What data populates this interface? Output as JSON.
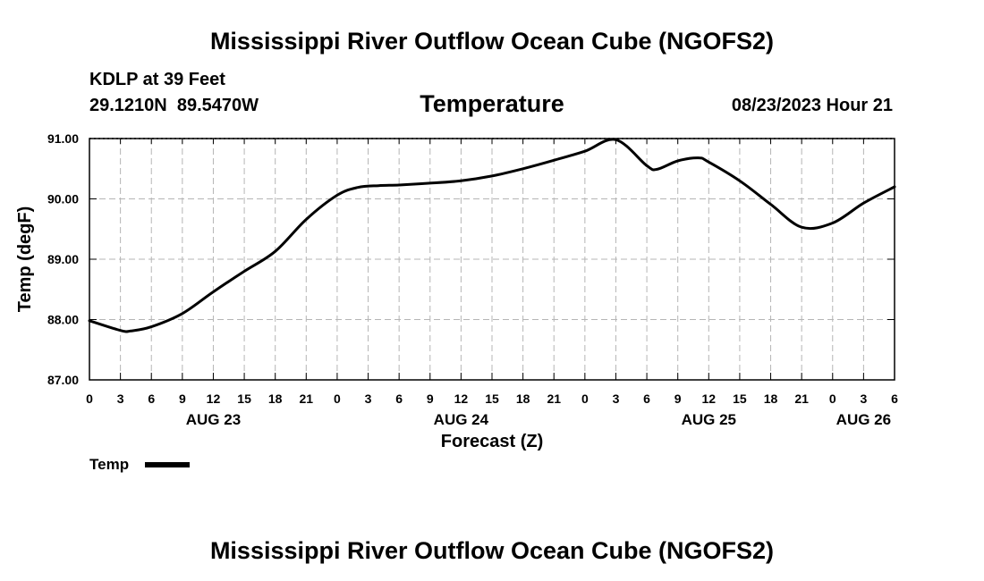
{
  "header": {
    "title": "Mississippi River Outflow Ocean Cube (NGOFS2)",
    "station": "KDLP at 39 Feet",
    "coords": "29.1210N  89.5470W",
    "datetime": "08/23/2023 Hour 21"
  },
  "footer": {
    "title": "Mississippi River Outflow Ocean Cube (NGOFS2)"
  },
  "chart_data": {
    "type": "line",
    "title": "Temperature",
    "xlabel": "Forecast (Z)",
    "ylabel": "Temp (degF)",
    "ylim": [
      87,
      91
    ],
    "xlim": [
      0,
      78
    ],
    "grid": true,
    "yticks": [
      87,
      88,
      89,
      90,
      91
    ],
    "ytick_labels": [
      "87.00",
      "88.00",
      "89.00",
      "90.00",
      "91.00"
    ],
    "xticks": [
      0,
      3,
      6,
      9,
      12,
      15,
      18,
      21,
      24,
      27,
      30,
      33,
      36,
      39,
      42,
      45,
      48,
      51,
      54,
      57,
      60,
      63,
      66,
      69,
      72,
      75,
      78
    ],
    "xtick_labels": [
      "0",
      "3",
      "6",
      "9",
      "12",
      "15",
      "18",
      "21",
      "0",
      "3",
      "6",
      "9",
      "12",
      "15",
      "18",
      "21",
      "0",
      "3",
      "6",
      "9",
      "12",
      "15",
      "18",
      "21",
      "0",
      "3",
      "6"
    ],
    "date_labels": [
      {
        "x": 12,
        "label": "AUG 23"
      },
      {
        "x": 36,
        "label": "AUG 24"
      },
      {
        "x": 60,
        "label": "AUG 25"
      },
      {
        "x": 75,
        "label": "AUG 26"
      }
    ],
    "legend": "Temp",
    "series": [
      {
        "name": "Temp",
        "color": "#000000",
        "x": [
          0,
          3,
          4,
          6,
          9,
          12,
          15,
          18,
          21,
          24,
          26,
          28,
          30,
          33,
          36,
          39,
          42,
          45,
          48,
          51,
          54,
          55,
          57,
          59,
          60,
          63,
          66,
          69,
          72,
          75,
          78
        ],
        "y": [
          87.98,
          87.82,
          87.81,
          87.88,
          88.1,
          88.46,
          88.8,
          89.13,
          89.66,
          90.06,
          90.19,
          90.22,
          90.23,
          90.26,
          90.3,
          90.38,
          90.5,
          90.64,
          90.79,
          90.98,
          90.55,
          90.49,
          90.63,
          90.68,
          90.61,
          90.3,
          89.91,
          89.53,
          89.6,
          89.93,
          90.2
        ]
      }
    ]
  }
}
